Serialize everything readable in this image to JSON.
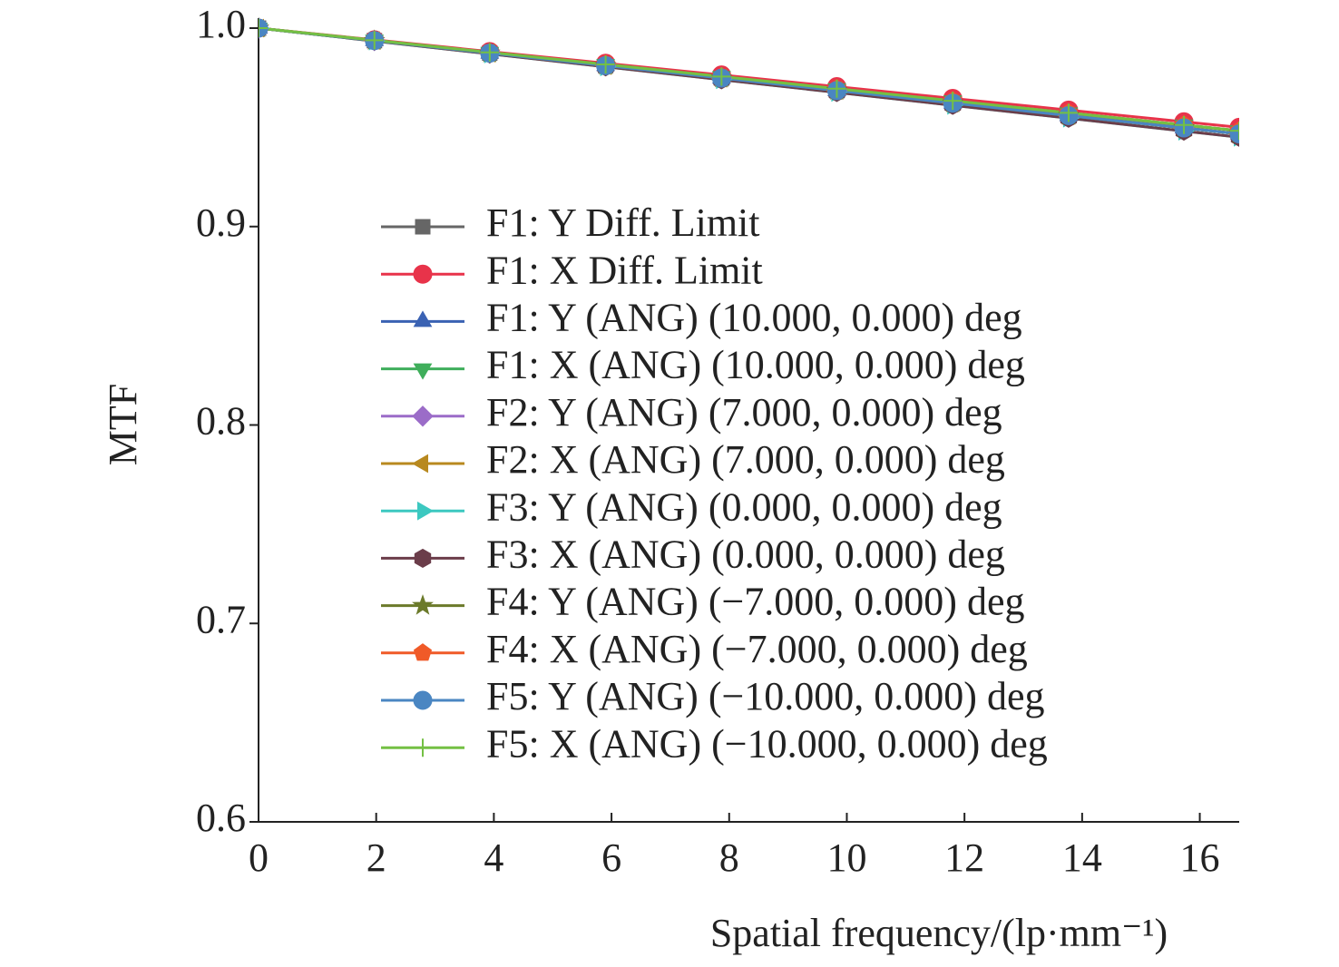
{
  "chart_data": {
    "type": "line",
    "x_label": "Spatial frequency/(lp·mm⁻¹)",
    "y_label": "MTF",
    "x": [
      0,
      1.97,
      3.93,
      5.9,
      7.87,
      9.83,
      11.8,
      13.77,
      15.73,
      16.67
    ],
    "xlim": [
      0,
      16.67
    ],
    "xticks": [
      0,
      2,
      4,
      6,
      8,
      10,
      12,
      14,
      16
    ],
    "ylim": [
      0.6,
      1.0
    ],
    "yticks": [
      {
        "value": 0.6,
        "label": "0.6"
      },
      {
        "value": 0.7,
        "label": "0.7"
      },
      {
        "value": 0.8,
        "label": "0.8"
      },
      {
        "value": 0.9,
        "label": "0.9"
      },
      {
        "value": 1.0,
        "label": "1.0"
      }
    ],
    "grid": false,
    "series": [
      {
        "name": "F1: Y Diff. Limit",
        "color": "#666666",
        "marker": "square",
        "values": [
          1,
          0.9937,
          0.9874,
          0.9811,
          0.9748,
          0.9685,
          0.9622,
          0.9559,
          0.9497,
          0.9467
        ]
      },
      {
        "name": "F1: X Diff. Limit",
        "color": "#e8334a",
        "marker": "circle",
        "values": [
          1,
          0.9941,
          0.9882,
          0.9823,
          0.9764,
          0.9705,
          0.9646,
          0.9587,
          0.9528,
          0.95
        ]
      },
      {
        "name": "F1: Y (ANG) (10.000, 0.000) deg",
        "color": "#3a62b3",
        "marker": "triangle-up",
        "values": [
          1,
          0.9937,
          0.9874,
          0.9811,
          0.9748,
          0.9685,
          0.9622,
          0.9559,
          0.9497,
          0.9467
        ]
      },
      {
        "name": "F1: X (ANG) (10.000, 0.000) deg",
        "color": "#3fae5b",
        "marker": "triangle-down",
        "values": [
          1,
          0.9939,
          0.9878,
          0.9817,
          0.9756,
          0.9695,
          0.9634,
          0.9573,
          0.9512,
          0.9483
        ]
      },
      {
        "name": "F2: Y (ANG) (7.000, 0.000) deg",
        "color": "#9b6cc8",
        "marker": "diamond",
        "values": [
          1,
          0.9937,
          0.9874,
          0.9811,
          0.9748,
          0.9685,
          0.9622,
          0.9559,
          0.9497,
          0.9467
        ]
      },
      {
        "name": "F2: X (ANG) (7.000, 0.000) deg",
        "color": "#b8891f",
        "marker": "triangle-left",
        "values": [
          1,
          0.9937,
          0.9874,
          0.9811,
          0.9748,
          0.9685,
          0.9622,
          0.9559,
          0.9497,
          0.9467
        ]
      },
      {
        "name": "F3: Y (ANG) (0.000, 0.000) deg",
        "color": "#3cc8c0",
        "marker": "triangle-right",
        "values": [
          1,
          0.9935,
          0.987,
          0.9805,
          0.974,
          0.9676,
          0.9611,
          0.9546,
          0.9481,
          0.945
        ]
      },
      {
        "name": "F3: X (ANG) (0.000, 0.000) deg",
        "color": "#6b3d4a",
        "marker": "hexagon",
        "values": [
          1,
          0.9935,
          0.987,
          0.9805,
          0.974,
          0.9676,
          0.9611,
          0.9546,
          0.9481,
          0.945
        ]
      },
      {
        "name": "F4: Y (ANG) (−7.000, 0.000) deg",
        "color": "#6b7a2a",
        "marker": "star",
        "values": [
          1,
          0.9937,
          0.9874,
          0.9811,
          0.9748,
          0.9685,
          0.9622,
          0.9559,
          0.9497,
          0.9467
        ]
      },
      {
        "name": "F4: X (ANG) (−7.000, 0.000) deg",
        "color": "#f05a28",
        "marker": "pentagon",
        "values": [
          1,
          0.9939,
          0.9878,
          0.9817,
          0.9756,
          0.9695,
          0.9634,
          0.9573,
          0.9512,
          0.9483
        ]
      },
      {
        "name": "F5: Y (ANG) (−10.000, 0.000) deg",
        "color": "#4a86c2",
        "marker": "circle",
        "values": [
          1,
          0.9937,
          0.9874,
          0.9811,
          0.9748,
          0.9685,
          0.9622,
          0.9559,
          0.9497,
          0.9467
        ]
      },
      {
        "name": "F5: X (ANG) (−10.000, 0.000) deg",
        "color": "#74c044",
        "marker": "plus",
        "values": [
          1,
          0.9939,
          0.9878,
          0.9817,
          0.9756,
          0.9695,
          0.9634,
          0.9573,
          0.9512,
          0.9483
        ]
      }
    ]
  }
}
